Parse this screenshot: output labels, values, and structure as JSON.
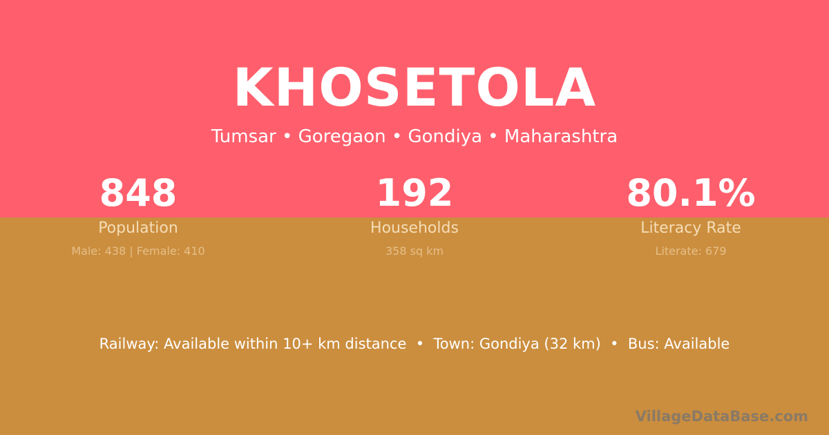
{
  "village": {
    "name": "KHOSETOLA",
    "location": "Tumsar • Goregaon • Gondiya • Maharashtra"
  },
  "stats": [
    {
      "value": "848",
      "label": "Population",
      "detail": "Male: 438 | Female: 410"
    },
    {
      "value": "192",
      "label": "Households",
      "detail": "358 sq km"
    },
    {
      "value": "80.1%",
      "label": "Literacy Rate",
      "detail": "Literate: 679"
    }
  ],
  "transport": "Railway: Available within 10+ km distance  •  Town: Gondiya (32 km)  •  Bus: Available",
  "watermark": "VillageDataBase.com",
  "colors": {
    "top": "#ff5f6d",
    "bottom": "#cb8e3e"
  }
}
